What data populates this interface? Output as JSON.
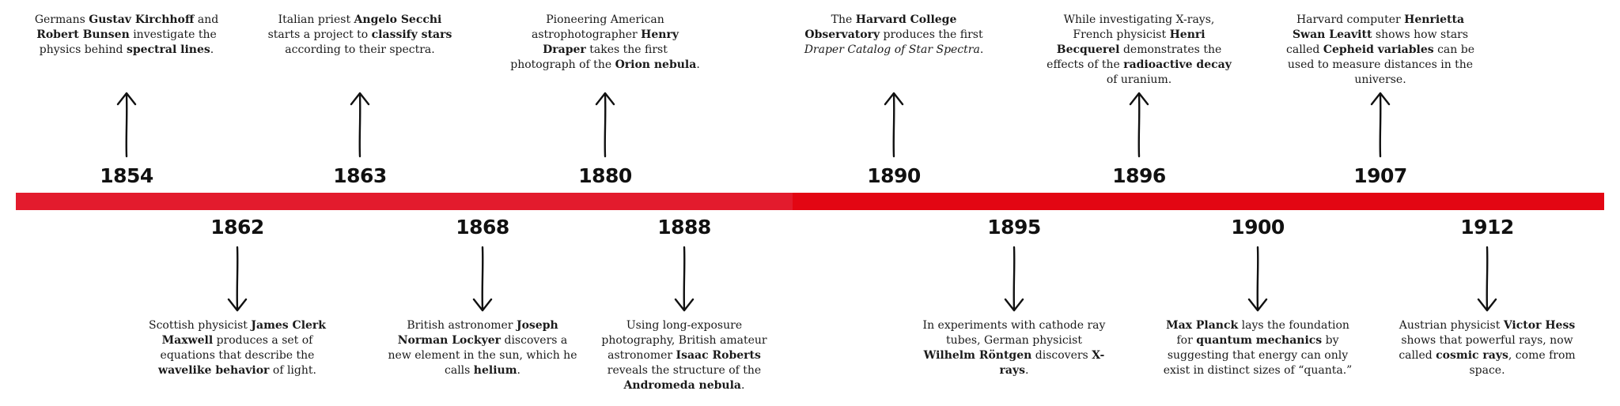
{
  "events_top": [
    {
      "year": "1854",
      "segments": [
        {
          "t": "Germans "
        },
        {
          "t": "Gustav Kirchhoff",
          "b": true
        },
        {
          "t": " and "
        },
        {
          "t": "Robert Bunsen",
          "b": true
        },
        {
          "t": " investigate the physics behind "
        },
        {
          "t": "spectral lines",
          "b": true
        },
        {
          "t": "."
        }
      ]
    },
    {
      "year": "1863",
      "segments": [
        {
          "t": "Italian priest "
        },
        {
          "t": "Angelo Secchi",
          "b": true
        },
        {
          "t": " starts a project to "
        },
        {
          "t": "classify stars",
          "b": true
        },
        {
          "t": " according to their spectra."
        }
      ]
    },
    {
      "year": "1880",
      "segments": [
        {
          "t": "Pioneering American astrophotographer "
        },
        {
          "t": "Henry Draper",
          "b": true
        },
        {
          "t": " takes the first photograph of the "
        },
        {
          "t": "Orion nebula",
          "b": true
        },
        {
          "t": "."
        }
      ]
    },
    {
      "year": "1890",
      "segments": [
        {
          "t": "The "
        },
        {
          "t": "Harvard College Observatory",
          "b": true
        },
        {
          "t": " produces the first "
        },
        {
          "t": "Draper Catalog of Star Spectra",
          "i": true
        },
        {
          "t": "."
        }
      ]
    },
    {
      "year": "1896",
      "segments": [
        {
          "t": "While investigating X-rays, French physicist "
        },
        {
          "t": "Henri Becquerel",
          "b": true
        },
        {
          "t": " demonstrates the effects of the "
        },
        {
          "t": "radioactive decay",
          "b": true
        },
        {
          "t": " of uranium."
        }
      ]
    },
    {
      "year": "1907",
      "segments": [
        {
          "t": "Harvard computer "
        },
        {
          "t": "Henrietta Swan Leavitt",
          "b": true
        },
        {
          "t": " shows how stars called "
        },
        {
          "t": "Cepheid variables",
          "b": true
        },
        {
          "t": " can be used to measure distances in the universe."
        }
      ]
    }
  ],
  "events_bottom": [
    {
      "year": "1862",
      "segments": [
        {
          "t": "Scottish physicist "
        },
        {
          "t": "James Clerk Maxwell",
          "b": true
        },
        {
          "t": " produces a set of equations that describe the "
        },
        {
          "t": "wavelike behavior",
          "b": true
        },
        {
          "t": " of light."
        }
      ]
    },
    {
      "year": "1868",
      "segments": [
        {
          "t": "British astronomer "
        },
        {
          "t": "Joseph Norman Lockyer",
          "b": true
        },
        {
          "t": " discovers a new element in the sun, which he calls "
        },
        {
          "t": "helium",
          "b": true
        },
        {
          "t": "."
        }
      ]
    },
    {
      "year": "1888",
      "segments": [
        {
          "t": "Using long-exposure photography, British amateur astronomer "
        },
        {
          "t": "Isaac Roberts",
          "b": true
        },
        {
          "t": " reveals the structure of the "
        },
        {
          "t": "Andromeda nebula",
          "b": true
        },
        {
          "t": "."
        }
      ]
    },
    {
      "year": "1895",
      "segments": [
        {
          "t": "In experiments with cathode ray tubes, German physicist "
        },
        {
          "t": "Wilhelm Röntgen",
          "b": true
        },
        {
          "t": " discovers "
        },
        {
          "t": "X-rays",
          "b": true
        },
        {
          "t": "."
        }
      ]
    },
    {
      "year": "1900",
      "segments": [
        {
          "t": "Max Planck",
          "b": true
        },
        {
          "t": " lays the foundation for "
        },
        {
          "t": "quantum mechanics",
          "b": true
        },
        {
          "t": " by suggesting that energy can only exist in distinct sizes of “quanta.”"
        }
      ]
    },
    {
      "year": "1912",
      "segments": [
        {
          "t": "Austrian physicist "
        },
        {
          "t": "Victor Hess",
          "b": true
        },
        {
          "t": " shows that powerful rays, now called "
        },
        {
          "t": "cosmic rays",
          "b": true
        },
        {
          "t": ", come from space."
        }
      ]
    }
  ],
  "colors": {
    "bar_early": "#e31b2d",
    "bar_late": "#e30613",
    "text": "#1a1a1a"
  },
  "icons": {
    "up": "hand-drawn-up-arrow-icon",
    "down": "hand-drawn-down-arrow-icon"
  }
}
